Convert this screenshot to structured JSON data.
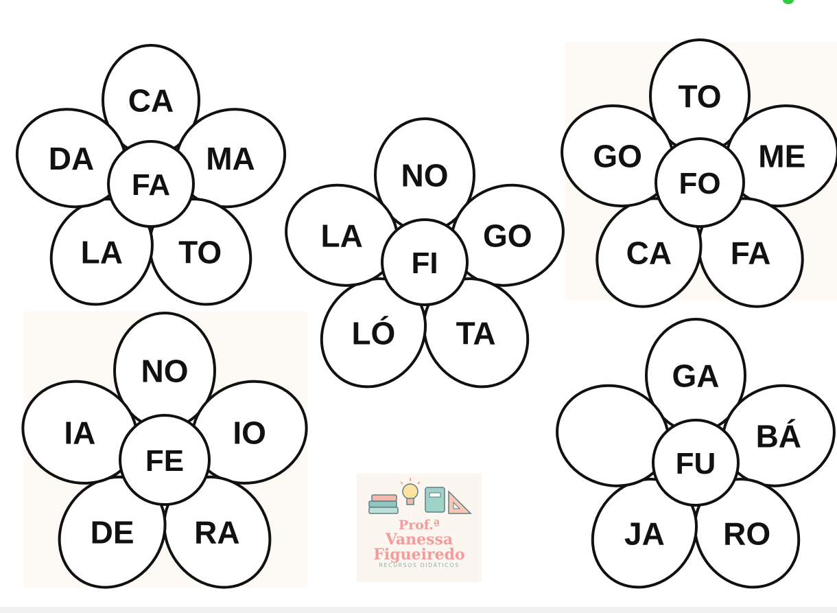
{
  "flowers": [
    {
      "center": "FA",
      "petals": [
        "CA",
        "MA",
        "TO",
        "LA",
        "DA"
      ]
    },
    {
      "center": "FI",
      "petals": [
        "NO",
        "GO",
        "TA",
        "LÓ",
        "LA"
      ]
    },
    {
      "center": "FO",
      "petals": [
        "TO",
        "ME",
        "FA",
        "CA",
        "GO"
      ]
    },
    {
      "center": "FE",
      "petals": [
        "NO",
        "IO",
        "RA",
        "DE",
        "IA"
      ]
    },
    {
      "center": "FU",
      "petals": [
        "GA",
        "BÁ",
        "RO",
        "JA",
        ""
      ]
    }
  ],
  "logo": {
    "line1": "Prof.ª",
    "line2": "Vanessa",
    "line3": "Figueiredo",
    "tagline": "RECURSOS DIDÁTICOS",
    "icons": [
      "books-icon",
      "lightbulb-icon",
      "notebook-icon",
      "ruler-triangle-icon"
    ]
  },
  "colors": {
    "ink": "#111111",
    "logo_text": "#f29c9c",
    "logo_tagline": "#8db3a6"
  }
}
